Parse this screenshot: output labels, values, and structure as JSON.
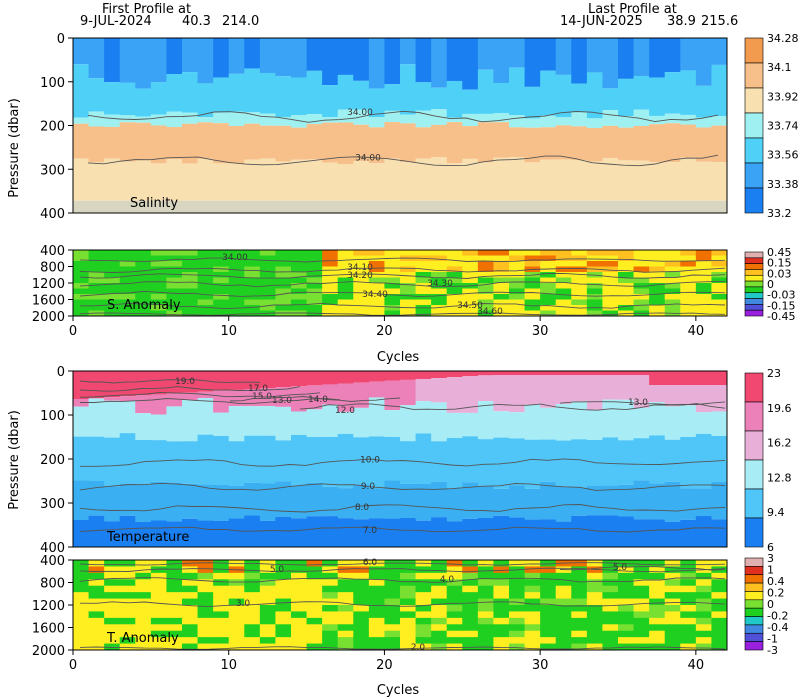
{
  "header": {
    "first_label": "First Profile at",
    "first_date": "9-JUL-2024",
    "first_lat": "40.3",
    "first_lon": "214.0",
    "last_label": "Last Profile at",
    "last_date": "14-JUN-2025",
    "last_lat": "38.9",
    "last_lon": "215.6"
  },
  "colors": {
    "salinity": [
      "#1a7ff0",
      "#3aa3f5",
      "#4fd0f7",
      "#9ff0f0",
      "#f9e0b0",
      "#f7c08a",
      "#f29a4e"
    ],
    "anomaly": [
      "#9a20e0",
      "#5050d8",
      "#4088e0",
      "#20c8c8",
      "#20d020",
      "#78e030",
      "#ffee20",
      "#ffc020",
      "#f07000",
      "#e03020",
      "#e0b0b0"
    ],
    "temperature": [
      "#1a7ff0",
      "#4fc6f7",
      "#a8ecf5",
      "#e8b0d8",
      "#ec80b8",
      "#f04870"
    ]
  },
  "chart_data": [
    {
      "type": "heatmap",
      "name_label": "Salinity",
      "xlabel": "",
      "ylabel": "Pressure (dbar)",
      "xlim": [
        0,
        42
      ],
      "ylim": [
        400,
        0
      ],
      "yticks": [
        "0",
        "100",
        "200",
        "300",
        "400"
      ],
      "colorbar": [
        "34.28",
        "34.1",
        "33.92",
        "33.74",
        "33.56",
        "33.38",
        "33.2"
      ],
      "contour_labels": [
        "34.00",
        "34.00"
      ],
      "layers": [
        {
          "from": 0,
          "to": 100,
          "value": 33.6
        },
        {
          "from": 100,
          "to": 140,
          "value": 33.85
        },
        {
          "from": 140,
          "to": 300,
          "value": 34.05
        },
        {
          "from": 300,
          "to": 400,
          "value": 33.97
        }
      ]
    },
    {
      "type": "heatmap",
      "name_label": "S. Anomaly",
      "ylabel": "",
      "ylim": [
        2000,
        400
      ],
      "yticks": [
        "400",
        "800",
        "1200",
        "1600",
        "2000"
      ],
      "colorbar": [
        "0.45",
        "0.15",
        "0.03",
        "0",
        "-0.03",
        "-0.15",
        "-0.45"
      ],
      "contour_labels": [
        "34.00",
        "34.10",
        "34.20",
        "34.30",
        "34.40",
        "34.50",
        "34.60"
      ]
    },
    {
      "type": "heatmap",
      "name_label": "Temperature",
      "xlabel": "Cycles",
      "ylabel": "Pressure (dbar)",
      "xlim": [
        0,
        42
      ],
      "ylim": [
        400,
        0
      ],
      "yticks": [
        "0",
        "100",
        "200",
        "300",
        "400"
      ],
      "colorbar": [
        "23",
        "19.6",
        "16.2",
        "12.8",
        "9.4",
        "6"
      ],
      "contour_labels": [
        "19.0",
        "17.0",
        "15.0",
        "13.0",
        "14.0",
        "12.0",
        "13.0",
        "10.0",
        "9.0",
        "8.0",
        "7.0"
      ]
    },
    {
      "type": "heatmap",
      "name_label": "T. Anomaly",
      "xlabel": "Cycles",
      "ylabel": "",
      "ylim": [
        2000,
        400
      ],
      "yticks": [
        "400",
        "800",
        "1200",
        "1600",
        "2000"
      ],
      "colorbar": [
        "3",
        "1",
        "0.4",
        "0.2",
        "0",
        "-0.2",
        "-0.4",
        "-1",
        "-3"
      ],
      "contour_labels": [
        "6.0",
        "5.0",
        "5.0",
        "4.0",
        "3.0",
        "2.0"
      ]
    }
  ],
  "axes": {
    "xticks": [
      "0",
      "10",
      "20",
      "30",
      "40"
    ],
    "xlabel": "Cycles"
  }
}
